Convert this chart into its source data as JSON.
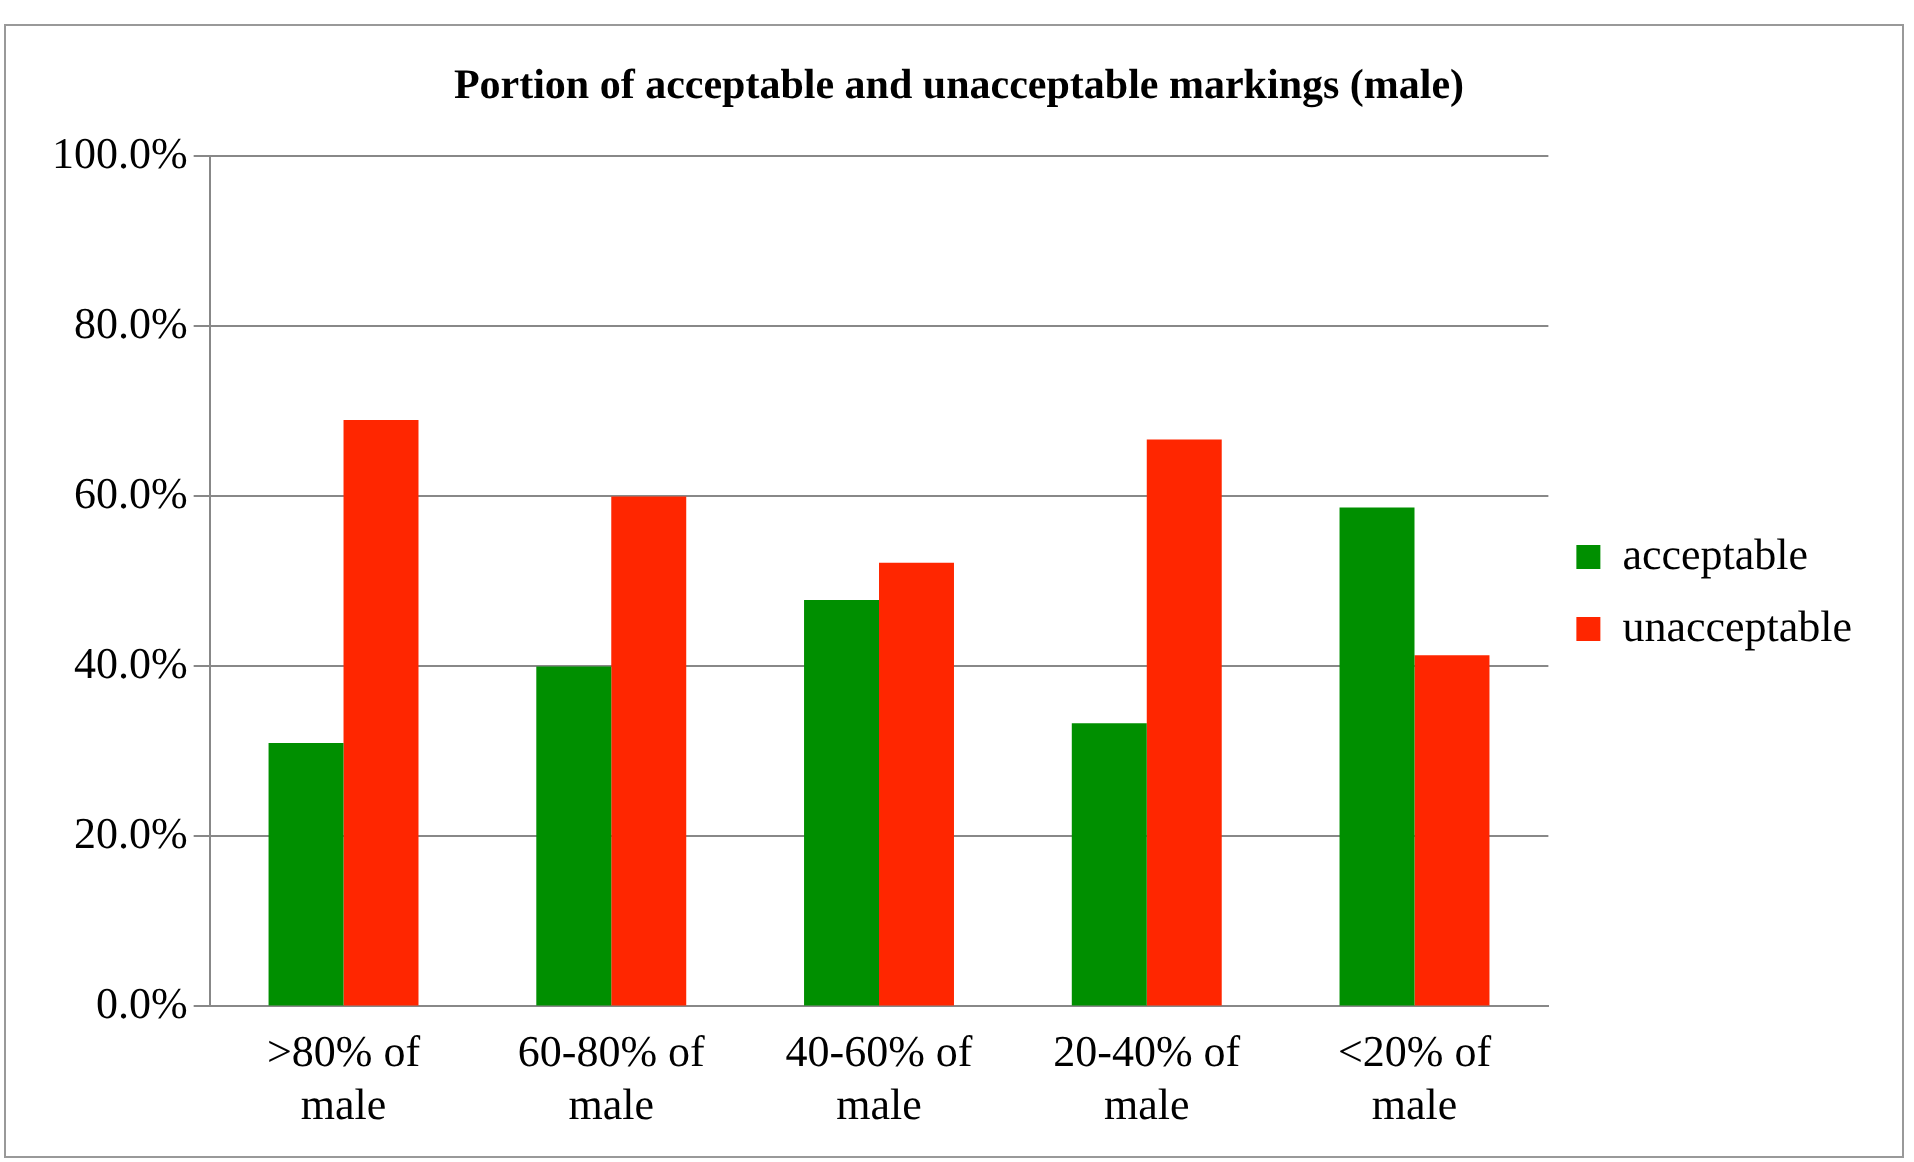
{
  "chart_data": {
    "type": "bar",
    "title": "Portion of acceptable and unacceptable markings (male)",
    "categories": [
      ">80% of male",
      "60-80% of male",
      "40-60% of male",
      "20-40% of male",
      "<20% of male"
    ],
    "series": [
      {
        "name": "acceptable",
        "color": "#008f00",
        "values": [
          31.0,
          40.0,
          47.8,
          33.3,
          58.7
        ]
      },
      {
        "name": "unacceptable",
        "color": "#ff2600",
        "values": [
          69.0,
          60.0,
          52.2,
          66.7,
          41.3
        ]
      }
    ],
    "ylim": [
      0,
      100
    ],
    "yticks": [
      {
        "value": 0,
        "label": "0.0%"
      },
      {
        "value": 20,
        "label": "20.0%"
      },
      {
        "value": 40,
        "label": "40.0%"
      },
      {
        "value": 60,
        "label": "60.0%"
      },
      {
        "value": 80,
        "label": "80.0%"
      },
      {
        "value": 100,
        "label": "100.0%"
      }
    ],
    "grid": "y",
    "legend": "right"
  }
}
